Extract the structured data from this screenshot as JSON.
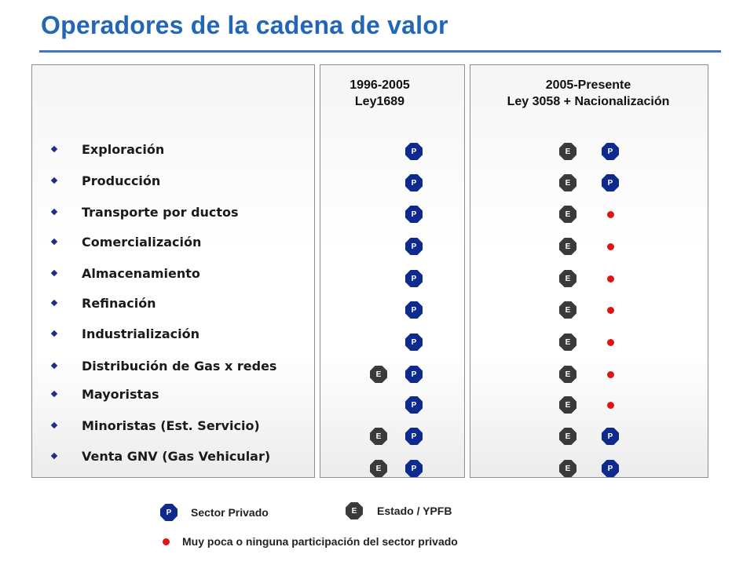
{
  "title": "Operadores de la cadena de valor",
  "columns": {
    "mid": {
      "line1": "1996-2005",
      "line2": "Ley1689"
    },
    "right": {
      "line1": "2005-Presente",
      "line2": "Ley 3058 + Nacionalización"
    }
  },
  "stages": [
    "Exploración",
    "Producción",
    "Transporte por ductos",
    "Comercialización",
    "Almacenamiento",
    "Refinación",
    "Industrialización",
    "Distribución de Gas x redes",
    "Mayoristas",
    "Minoristas (Est. Servicio)",
    "Venta GNV (Gas Vehicular)"
  ],
  "markers": {
    "private": "P",
    "state": "E"
  },
  "period_1996_2005": [
    {
      "state": false,
      "private": true
    },
    {
      "state": false,
      "private": true
    },
    {
      "state": false,
      "private": true
    },
    {
      "state": false,
      "private": true
    },
    {
      "state": false,
      "private": true
    },
    {
      "state": false,
      "private": true
    },
    {
      "state": false,
      "private": true
    },
    {
      "state": true,
      "private": true
    },
    {
      "state": false,
      "private": true
    },
    {
      "state": true,
      "private": true
    },
    {
      "state": true,
      "private": true
    }
  ],
  "period_2005_present": [
    {
      "state": true,
      "private": "P"
    },
    {
      "state": true,
      "private": "P"
    },
    {
      "state": true,
      "private": "minimal"
    },
    {
      "state": true,
      "private": "minimal"
    },
    {
      "state": true,
      "private": "minimal"
    },
    {
      "state": true,
      "private": "minimal"
    },
    {
      "state": true,
      "private": "minimal"
    },
    {
      "state": true,
      "private": "minimal"
    },
    {
      "state": true,
      "private": "minimal"
    },
    {
      "state": true,
      "private": "P"
    },
    {
      "state": true,
      "private": "P"
    }
  ],
  "legend": {
    "private_label": "Sector Privado",
    "state_label": "Estado / YPFB",
    "minimal_label": "Muy poca o ninguna participación del sector privado"
  },
  "colors": {
    "title": "#2266b8",
    "private_marker": "#0d2a8c",
    "state_marker": "#3a3a3a",
    "minimal_dot": "#e01414",
    "bullet": "#1f2d8a"
  }
}
